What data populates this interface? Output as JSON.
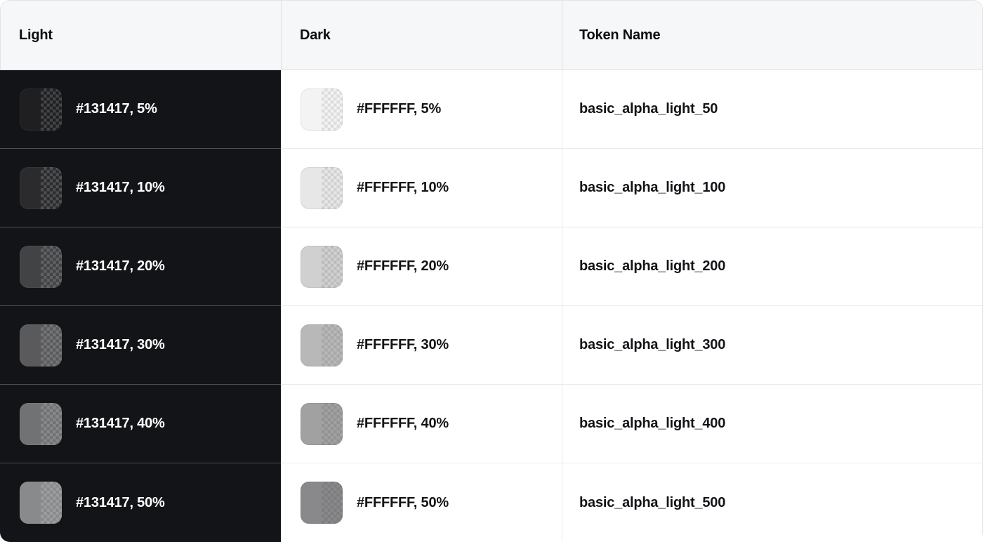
{
  "table": {
    "columns": [
      {
        "key": "light",
        "label": "Light"
      },
      {
        "key": "dark",
        "label": "Dark"
      },
      {
        "key": "token",
        "label": "Token Name"
      }
    ],
    "rows": [
      {
        "percent": 5,
        "light_hex": "#131417",
        "dark_hex": "#FFFFFF",
        "light_label": "#131417, 5%",
        "dark_label": "#FFFFFF, 5%",
        "token": "basic_alpha_light_50"
      },
      {
        "percent": 10,
        "light_hex": "#131417",
        "dark_hex": "#FFFFFF",
        "light_label": "#131417, 10%",
        "dark_label": "#FFFFFF, 10%",
        "token": "basic_alpha_light_100"
      },
      {
        "percent": 20,
        "light_hex": "#131417",
        "dark_hex": "#FFFFFF",
        "light_label": "#131417, 20%",
        "dark_label": "#FFFFFF, 20%",
        "token": "basic_alpha_light_200"
      },
      {
        "percent": 30,
        "light_hex": "#131417",
        "dark_hex": "#FFFFFF",
        "light_label": "#131417, 30%",
        "dark_label": "#FFFFFF, 30%",
        "token": "basic_alpha_light_300"
      },
      {
        "percent": 40,
        "light_hex": "#131417",
        "dark_hex": "#FFFFFF",
        "light_label": "#131417, 40%",
        "dark_label": "#FFFFFF, 40%",
        "token": "basic_alpha_light_400"
      },
      {
        "percent": 50,
        "light_hex": "#131417",
        "dark_hex": "#FFFFFF",
        "light_label": "#131417, 50%",
        "dark_label": "#FFFFFF, 50%",
        "token": "basic_alpha_light_500"
      }
    ]
  },
  "colors": {
    "light_cell_bg": "#131417",
    "dark_cell_bg": "#FFFFFF",
    "header_bg": "#F6F7F8",
    "header_text": "#0C0D0E",
    "light_row_divider": "#4D4F53",
    "row_divider": "#E9EAEC",
    "table_border": "#E2E3E6",
    "light_text": "#FFFFFF",
    "token_text": "#131417"
  }
}
